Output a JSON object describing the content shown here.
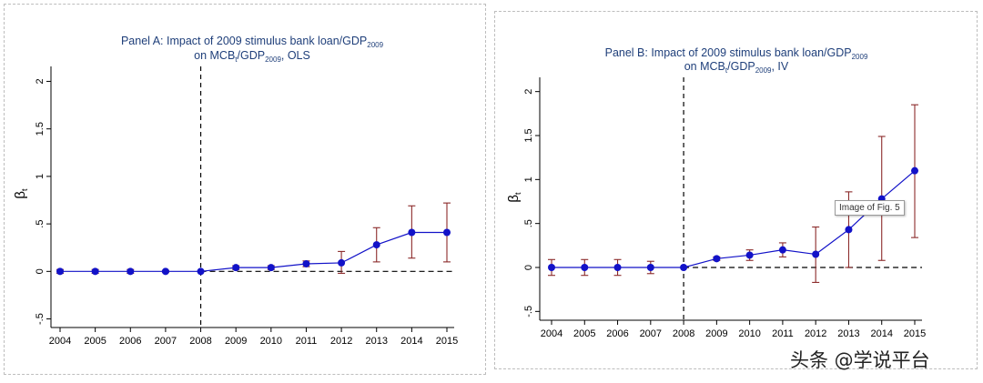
{
  "chart_data": [
    {
      "type": "line",
      "title_line1": "Panel A: Impact of 2009 stimulus bank loan/GDP",
      "title_line1_sub": "2009",
      "title_line2_a": "on MCB",
      "title_line2_sub1": "t",
      "title_line2_b": "/GDP",
      "title_line2_sub2": "2009",
      "title_line2_c": ", OLS",
      "ylabel": "β",
      "ylabel_sub": "t",
      "categories": [
        "2004",
        "2005",
        "2006",
        "2007",
        "2008",
        "2009",
        "2010",
        "2011",
        "2012",
        "2013",
        "2014",
        "2015"
      ],
      "yticks": [
        -0.5,
        0,
        0.5,
        1,
        1.5,
        2
      ],
      "ytick_labels": [
        "-.5",
        "0",
        ".5",
        "1",
        "1.5",
        "2"
      ],
      "ylim": [
        -0.6,
        2.1
      ],
      "reference_year": "2008",
      "series": [
        {
          "name": "beta_t",
          "values": [
            0.0,
            0.0,
            0.0,
            0.0,
            0.0,
            0.04,
            0.04,
            0.08,
            0.09,
            0.28,
            0.41,
            0.41
          ],
          "ci_low": [
            -0.02,
            -0.02,
            -0.02,
            -0.01,
            0.0,
            0.02,
            0.02,
            0.05,
            -0.02,
            0.1,
            0.14,
            0.1
          ],
          "ci_high": [
            0.02,
            0.02,
            0.02,
            0.01,
            0.0,
            0.06,
            0.06,
            0.11,
            0.21,
            0.46,
            0.69,
            0.72
          ]
        }
      ],
      "colors": {
        "line": "#1212c8",
        "ci": "#8b2a2a",
        "title": "#1f3f7a"
      }
    },
    {
      "type": "line",
      "title_line1": "Panel B: Impact of 2009 stimulus bank loan/GDP",
      "title_line1_sub": "2009",
      "title_line2_a": "on MCB",
      "title_line2_sub1": "t",
      "title_line2_b": "/GDP",
      "title_line2_sub2": "2009",
      "title_line2_c": ", IV",
      "ylabel": "β",
      "ylabel_sub": "t",
      "categories": [
        "2004",
        "2005",
        "2006",
        "2007",
        "2008",
        "2009",
        "2010",
        "2011",
        "2012",
        "2013",
        "2014",
        "2015"
      ],
      "yticks": [
        -0.5,
        0,
        0.5,
        1,
        1.5,
        2
      ],
      "ytick_labels": [
        "-.5",
        "0",
        ".5",
        "1",
        "1.5",
        "2"
      ],
      "ylim": [
        -0.6,
        2.1
      ],
      "reference_year": "2008",
      "series": [
        {
          "name": "beta_t",
          "values": [
            0.0,
            0.0,
            0.0,
            0.0,
            0.0,
            0.1,
            0.14,
            0.2,
            0.15,
            0.43,
            0.78,
            1.1
          ],
          "ci_low": [
            -0.09,
            -0.09,
            -0.09,
            -0.07,
            0.0,
            0.08,
            0.08,
            0.12,
            -0.17,
            0.0,
            0.08,
            0.34
          ],
          "ci_high": [
            0.09,
            0.09,
            0.09,
            0.07,
            0.0,
            0.12,
            0.2,
            0.28,
            0.46,
            0.86,
            1.49,
            1.85
          ]
        }
      ],
      "colors": {
        "line": "#1212c8",
        "ci": "#8b2a2a",
        "title": "#1f3f7a"
      }
    }
  ],
  "tooltip": "Image of Fig. 5",
  "watermark": "头条 @学说平台"
}
